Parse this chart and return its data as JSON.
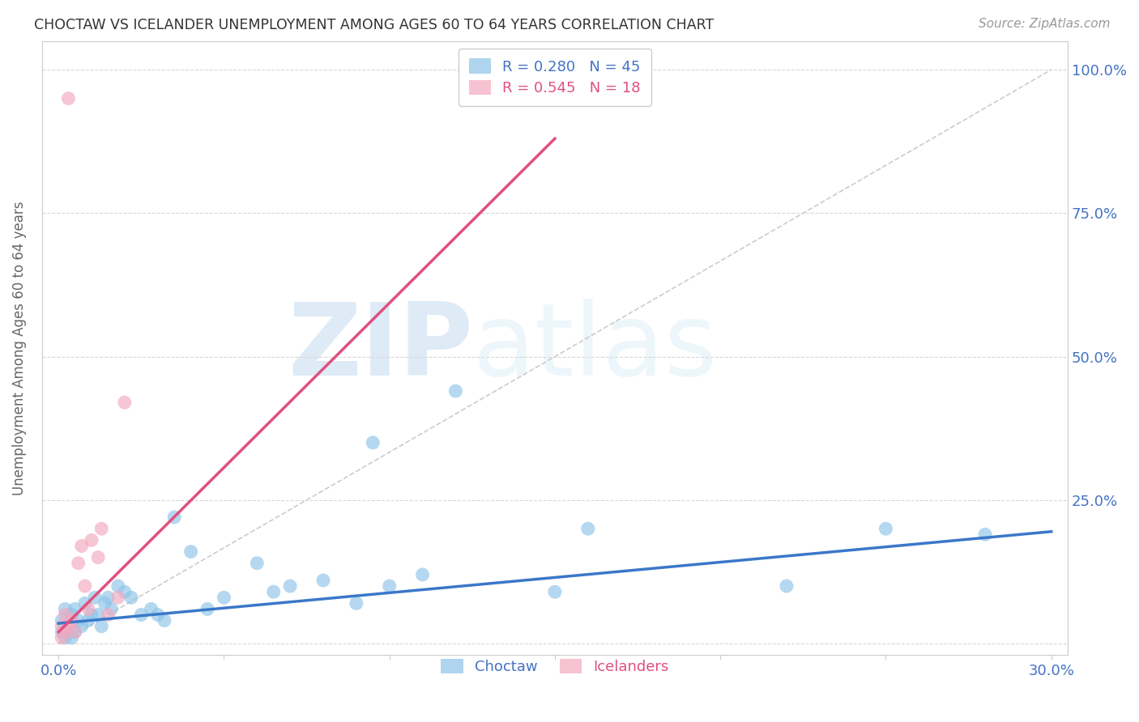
{
  "title": "CHOCTAW VS ICELANDER UNEMPLOYMENT AMONG AGES 60 TO 64 YEARS CORRELATION CHART",
  "source": "Source: ZipAtlas.com",
  "ylabel": "Unemployment Among Ages 60 to 64 years",
  "xlim": [
    -0.005,
    0.305
  ],
  "ylim": [
    -0.02,
    1.05
  ],
  "xticks": [
    0.0,
    0.05,
    0.1,
    0.15,
    0.2,
    0.25,
    0.3
  ],
  "xticklabels": [
    "0.0%",
    "",
    "",
    "",
    "",
    "",
    "30.0%"
  ],
  "yticks": [
    0.0,
    0.25,
    0.5,
    0.75,
    1.0
  ],
  "yticklabels": [
    "",
    "25.0%",
    "50.0%",
    "75.0%",
    "100.0%"
  ],
  "choctaw_color": "#8ec4e8",
  "icelander_color": "#f4a8be",
  "choctaw_line_color": "#3a78c9",
  "icelander_line_color": "#e05080",
  "diagonal_color": "#cccccc",
  "watermark_zip": "ZIP",
  "watermark_atlas": "atlas",
  "legend_choctaw_R": "0.280",
  "legend_choctaw_N": "45",
  "legend_icelander_R": "0.545",
  "legend_icelander_N": "18",
  "choctaw_x": [
    0.001,
    0.001,
    0.002,
    0.002,
    0.003,
    0.004,
    0.004,
    0.005,
    0.005,
    0.006,
    0.007,
    0.008,
    0.009,
    0.01,
    0.011,
    0.012,
    0.013,
    0.014,
    0.015,
    0.016,
    0.018,
    0.02,
    0.022,
    0.025,
    0.028,
    0.03,
    0.032,
    0.035,
    0.04,
    0.045,
    0.05,
    0.06,
    0.065,
    0.07,
    0.08,
    0.09,
    0.095,
    0.1,
    0.11,
    0.12,
    0.15,
    0.16,
    0.22,
    0.25,
    0.28
  ],
  "choctaw_y": [
    0.02,
    0.04,
    0.01,
    0.06,
    0.02,
    0.01,
    0.05,
    0.02,
    0.06,
    0.04,
    0.03,
    0.07,
    0.04,
    0.05,
    0.08,
    0.05,
    0.03,
    0.07,
    0.08,
    0.06,
    0.1,
    0.09,
    0.08,
    0.05,
    0.06,
    0.05,
    0.04,
    0.22,
    0.16,
    0.06,
    0.08,
    0.14,
    0.09,
    0.1,
    0.11,
    0.07,
    0.35,
    0.1,
    0.12,
    0.44,
    0.09,
    0.2,
    0.1,
    0.2,
    0.19
  ],
  "icelander_x": [
    0.001,
    0.001,
    0.002,
    0.002,
    0.003,
    0.003,
    0.004,
    0.005,
    0.006,
    0.007,
    0.008,
    0.009,
    0.01,
    0.012,
    0.013,
    0.015,
    0.018,
    0.02
  ],
  "icelander_y": [
    0.01,
    0.03,
    0.02,
    0.05,
    0.03,
    0.95,
    0.04,
    0.02,
    0.14,
    0.17,
    0.1,
    0.06,
    0.18,
    0.15,
    0.2,
    0.05,
    0.08,
    0.42
  ],
  "choctaw_regline_x": [
    0.0,
    0.3
  ],
  "choctaw_regline_y": [
    0.035,
    0.195
  ],
  "icelander_regline_x": [
    0.0,
    0.15
  ],
  "icelander_regline_y": [
    0.02,
    0.88
  ]
}
